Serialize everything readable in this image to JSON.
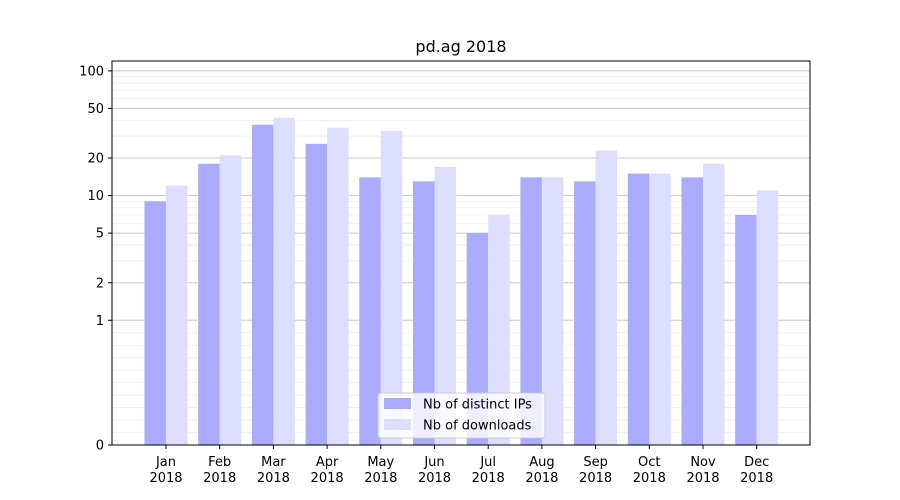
{
  "chart_data": {
    "type": "bar",
    "title": "pd.ag 2018",
    "xlabel": "",
    "ylabel": "",
    "yscale": "symlog",
    "ylim": [
      0,
      120
    ],
    "yticks": [
      0,
      1,
      2,
      5,
      10,
      20,
      50,
      100
    ],
    "ytick_labels": [
      "0",
      "1",
      "2",
      "5",
      "10",
      "20",
      "50",
      "100"
    ],
    "categories": [
      {
        "month": "Jan",
        "year": "2018"
      },
      {
        "month": "Feb",
        "year": "2018"
      },
      {
        "month": "Mar",
        "year": "2018"
      },
      {
        "month": "Apr",
        "year": "2018"
      },
      {
        "month": "May",
        "year": "2018"
      },
      {
        "month": "Jun",
        "year": "2018"
      },
      {
        "month": "Jul",
        "year": "2018"
      },
      {
        "month": "Aug",
        "year": "2018"
      },
      {
        "month": "Sep",
        "year": "2018"
      },
      {
        "month": "Oct",
        "year": "2018"
      },
      {
        "month": "Nov",
        "year": "2018"
      },
      {
        "month": "Dec",
        "year": "2018"
      }
    ],
    "series": [
      {
        "name": "Nb of distinct IPs",
        "color": "#aaaaff",
        "values": [
          9,
          18,
          37,
          26,
          14,
          13,
          5,
          14,
          13,
          15,
          14,
          7
        ]
      },
      {
        "name": "Nb of downloads",
        "color": "#ddddff",
        "values": [
          12,
          21,
          42,
          35,
          33,
          17,
          7,
          14,
          23,
          15,
          18,
          11
        ]
      }
    ],
    "legend_position": "bottom-center",
    "grid": true
  }
}
